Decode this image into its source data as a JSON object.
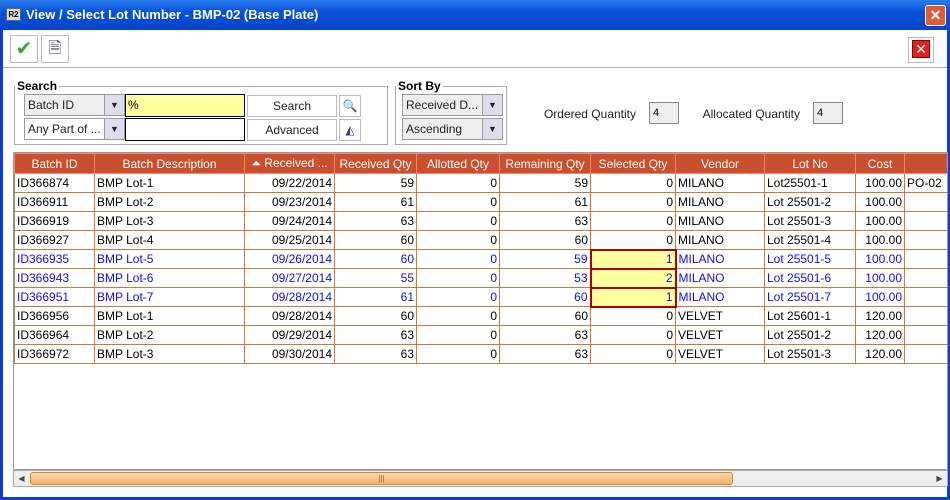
{
  "window": {
    "title": "View / Select Lot Number - BMP-02 (Base Plate)",
    "app_icon": "R2",
    "close": "✕"
  },
  "toolbar": {
    "ok_icon": "check-icon",
    "preview_icon": "document-view-icon",
    "close_icon": "close-icon"
  },
  "search": {
    "legend": "Search",
    "field": "Batch ID",
    "match": "Any Part of ...",
    "value": "%",
    "value2": "",
    "search_label": "Search",
    "advanced_label": "Advanced"
  },
  "sort": {
    "legend": "Sort By",
    "field": "Received D...",
    "order": "Ascending"
  },
  "ordered": {
    "label": "Ordered Quantity",
    "value": "4"
  },
  "allocated": {
    "label": "Allocated Quantity",
    "value": "4"
  },
  "table": {
    "columns": [
      "Batch ID",
      "Batch Description",
      "Received ...",
      "Received Qty",
      "Allotted Qty",
      "Remaining Qty",
      "Selected Qty",
      "Vendor",
      "Lot No",
      "Cost",
      "PO"
    ],
    "rows": [
      [
        "ID366874",
        "BMP Lot-1",
        "09/22/2014",
        "59",
        "0",
        "59",
        "0",
        "MILANO",
        "Lot25501-1",
        "100.00",
        "PO-02"
      ],
      [
        "ID366911",
        "BMP Lot-2",
        "09/23/2014",
        "61",
        "0",
        "61",
        "0",
        "MILANO",
        "Lot 25501-2",
        "100.00",
        ""
      ],
      [
        "ID366919",
        "BMP Lot-3",
        "09/24/2014",
        "63",
        "0",
        "63",
        "0",
        "MILANO",
        "Lot 25501-3",
        "100.00",
        ""
      ],
      [
        "ID366927",
        "BMP Lot-4",
        "09/25/2014",
        "60",
        "0",
        "60",
        "0",
        "MILANO",
        "Lot 25501-4",
        "100.00",
        ""
      ],
      [
        "ID366935",
        "BMP Lot-5",
        "09/26/2014",
        "60",
        "0",
        "59",
        "1",
        "MILANO",
        "Lot 25501-5",
        "100.00",
        ""
      ],
      [
        "ID366943",
        "BMP Lot-6",
        "09/27/2014",
        "55",
        "0",
        "53",
        "2",
        "MILANO",
        "Lot 25501-6",
        "100.00",
        ""
      ],
      [
        "ID366951",
        "BMP Lot-7",
        "09/28/2014",
        "61",
        "0",
        "60",
        "1",
        "MILANO",
        "Lot 25501-7",
        "100.00",
        ""
      ],
      [
        "ID366956",
        "BMP Lot-1",
        "09/28/2014",
        "60",
        "0",
        "60",
        "0",
        "VELVET",
        "Lot 25601-1",
        "120.00",
        ""
      ],
      [
        "ID366964",
        "BMP Lot-2",
        "09/29/2014",
        "63",
        "0",
        "63",
        "0",
        "VELVET",
        "Lot 25501-2",
        "120.00",
        ""
      ],
      [
        "ID366972",
        "BMP Lot-3",
        "09/30/2014",
        "63",
        "0",
        "63",
        "0",
        "VELVET",
        "Lot 25501-3",
        "120.00",
        ""
      ]
    ],
    "selected_rows": [
      4,
      5,
      6
    ]
  }
}
